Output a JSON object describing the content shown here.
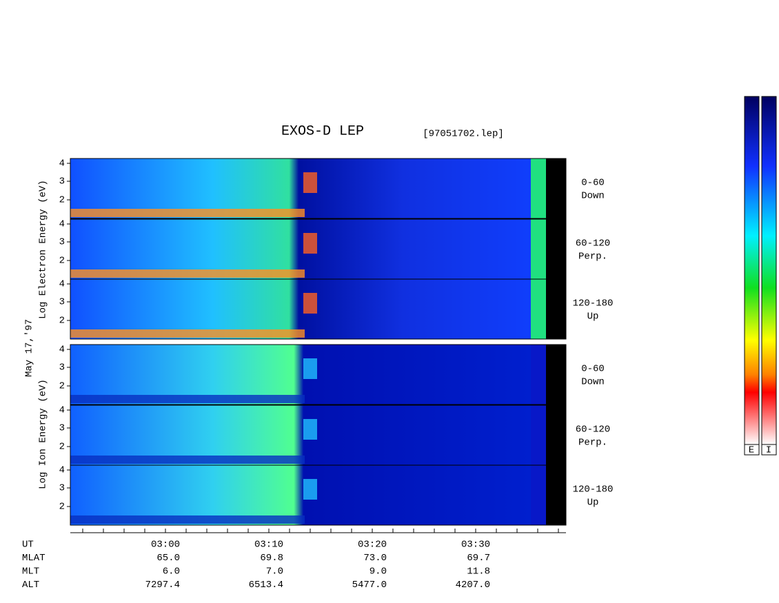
{
  "header": {
    "title": "EXOS-D LEP",
    "file": "[97051702.lep]"
  },
  "y_labels": {
    "electron": "Log  Electron  Energy (eV)",
    "ion": "Log  Ion  Energy (eV)",
    "date": "May 17,'97"
  },
  "y_ticks": [
    "2",
    "3",
    "4"
  ],
  "panels": [
    {
      "angle": "0-60",
      "direction": "Down"
    },
    {
      "angle": "60-120",
      "direction": "Perp."
    },
    {
      "angle": "120-180",
      "direction": "Up"
    },
    {
      "angle": "0-60",
      "direction": "Down"
    },
    {
      "angle": "60-120",
      "direction": "Perp."
    },
    {
      "angle": "120-180",
      "direction": "Up"
    }
  ],
  "time_table": {
    "rows": [
      {
        "name": "UT",
        "values": [
          "03:00",
          "03:10",
          "03:20",
          "03:30"
        ]
      },
      {
        "name": "MLAT",
        "values": [
          "65.0",
          "69.8",
          "73.0",
          "69.7"
        ]
      },
      {
        "name": "MLT",
        "values": [
          "6.0",
          "7.0",
          "9.0",
          "11.8"
        ]
      },
      {
        "name": "ALT",
        "values": [
          "7297.4",
          "6513.4",
          "5477.0",
          "4207.0"
        ]
      }
    ]
  },
  "colorbar": {
    "labels": [
      "E",
      "I"
    ]
  }
}
